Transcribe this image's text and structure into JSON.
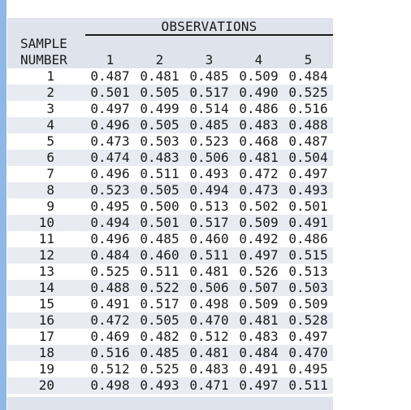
{
  "header": {
    "observations_label": "OBSERVATIONS",
    "sample_line1": "SAMPLE",
    "sample_line2": "NUMBER",
    "columns": [
      "1",
      "2",
      "3",
      "4",
      "5"
    ]
  },
  "rows": [
    {
      "n": "1",
      "v": [
        "0.487",
        "0.481",
        "0.485",
        "0.509",
        "0.484"
      ]
    },
    {
      "n": "2",
      "v": [
        "0.501",
        "0.505",
        "0.517",
        "0.490",
        "0.525"
      ]
    },
    {
      "n": "3",
      "v": [
        "0.497",
        "0.499",
        "0.514",
        "0.486",
        "0.516"
      ]
    },
    {
      "n": "4",
      "v": [
        "0.496",
        "0.505",
        "0.485",
        "0.483",
        "0.488"
      ]
    },
    {
      "n": "5",
      "v": [
        "0.473",
        "0.503",
        "0.523",
        "0.468",
        "0.487"
      ]
    },
    {
      "n": "6",
      "v": [
        "0.474",
        "0.483",
        "0.506",
        "0.481",
        "0.504"
      ]
    },
    {
      "n": "7",
      "v": [
        "0.496",
        "0.511",
        "0.493",
        "0.472",
        "0.497"
      ]
    },
    {
      "n": "8",
      "v": [
        "0.523",
        "0.505",
        "0.494",
        "0.473",
        "0.493"
      ]
    },
    {
      "n": "9",
      "v": [
        "0.495",
        "0.500",
        "0.513",
        "0.502",
        "0.501"
      ]
    },
    {
      "n": "10",
      "v": [
        "0.494",
        "0.501",
        "0.517",
        "0.509",
        "0.491"
      ]
    },
    {
      "n": "11",
      "v": [
        "0.496",
        "0.485",
        "0.460",
        "0.492",
        "0.486"
      ]
    },
    {
      "n": "12",
      "v": [
        "0.484",
        "0.460",
        "0.511",
        "0.497",
        "0.515"
      ]
    },
    {
      "n": "13",
      "v": [
        "0.525",
        "0.511",
        "0.481",
        "0.526",
        "0.513"
      ]
    },
    {
      "n": "14",
      "v": [
        "0.488",
        "0.522",
        "0.506",
        "0.507",
        "0.503"
      ]
    },
    {
      "n": "15",
      "v": [
        "0.491",
        "0.517",
        "0.498",
        "0.509",
        "0.509"
      ]
    },
    {
      "n": "16",
      "v": [
        "0.472",
        "0.505",
        "0.470",
        "0.481",
        "0.528"
      ]
    },
    {
      "n": "17",
      "v": [
        "0.469",
        "0.482",
        "0.512",
        "0.483",
        "0.497"
      ]
    },
    {
      "n": "18",
      "v": [
        "0.516",
        "0.485",
        "0.481",
        "0.484",
        "0.470"
      ]
    },
    {
      "n": "19",
      "v": [
        "0.512",
        "0.525",
        "0.483",
        "0.491",
        "0.495"
      ]
    },
    {
      "n": "20",
      "v": [
        "0.498",
        "0.493",
        "0.471",
        "0.497",
        "0.511"
      ]
    }
  ],
  "colors": {
    "header_bg": "#dfe3ec",
    "stripe_bg": "#e8ebf2",
    "left_rule": "#8fb8e8"
  }
}
